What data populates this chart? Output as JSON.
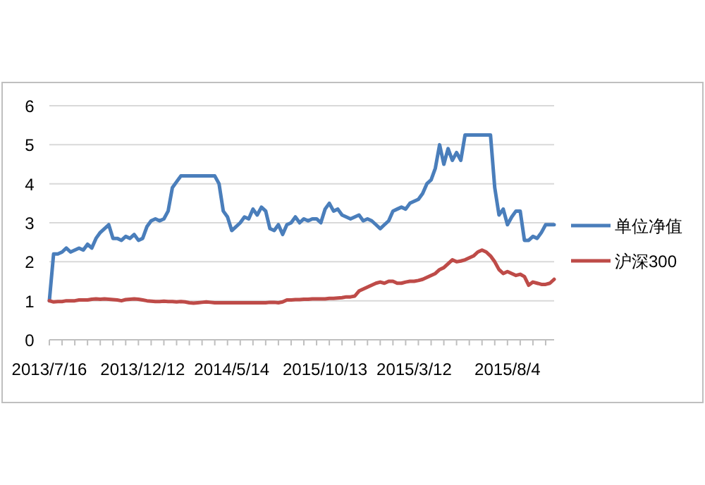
{
  "chart_data": {
    "type": "line",
    "categories": [
      "2013/7/16",
      null,
      null,
      null,
      null,
      null,
      null,
      null,
      null,
      null,
      null,
      null,
      null,
      null,
      null,
      null,
      null,
      null,
      null,
      null,
      null,
      null,
      "2013/12/12",
      null,
      null,
      null,
      null,
      null,
      null,
      null,
      null,
      null,
      null,
      null,
      null,
      null,
      null,
      null,
      null,
      null,
      null,
      null,
      null,
      "2014/5/14",
      null,
      null,
      null,
      null,
      null,
      null,
      null,
      null,
      null,
      null,
      null,
      null,
      null,
      null,
      null,
      null,
      null,
      null,
      null,
      null,
      null,
      "2015/10/13",
      null,
      null,
      null,
      null,
      null,
      null,
      null,
      null,
      null,
      null,
      null,
      null,
      null,
      null,
      null,
      null,
      null,
      null,
      null,
      null,
      "2015/3/12",
      null,
      null,
      null,
      null,
      null,
      null,
      null,
      null,
      null,
      null,
      null,
      null,
      null,
      null,
      null,
      null,
      null,
      null,
      null,
      null,
      null,
      "2015/8/4",
      null,
      null,
      null,
      null,
      null,
      null,
      null,
      null,
      null,
      null,
      null
    ],
    "series": [
      {
        "name": "单位净值",
        "color": "#4a7ebb",
        "values": [
          1.0,
          2.2,
          2.2,
          2.25,
          2.35,
          2.25,
          2.3,
          2.35,
          2.3,
          2.45,
          2.35,
          2.6,
          2.75,
          2.85,
          2.95,
          2.6,
          2.6,
          2.55,
          2.65,
          2.6,
          2.7,
          2.55,
          2.6,
          2.9,
          3.05,
          3.1,
          3.05,
          3.1,
          3.3,
          3.9,
          4.05,
          4.2,
          4.2,
          4.2,
          4.2,
          4.2,
          4.2,
          4.2,
          4.2,
          4.2,
          4.0,
          3.3,
          3.15,
          2.8,
          2.9,
          3.0,
          3.15,
          3.1,
          3.35,
          3.2,
          3.4,
          3.3,
          2.85,
          2.8,
          2.95,
          2.7,
          2.95,
          3.0,
          3.15,
          3.0,
          3.1,
          3.05,
          3.1,
          3.1,
          3.0,
          3.35,
          3.5,
          3.3,
          3.35,
          3.2,
          3.15,
          3.1,
          3.15,
          3.2,
          3.05,
          3.1,
          3.05,
          2.95,
          2.85,
          2.95,
          3.05,
          3.3,
          3.35,
          3.4,
          3.35,
          3.5,
          3.55,
          3.6,
          3.75,
          4.0,
          4.1,
          4.4,
          5.0,
          4.5,
          4.9,
          4.6,
          4.8,
          4.6,
          5.25,
          5.25,
          5.25,
          5.25,
          5.25,
          5.25,
          5.25,
          3.9,
          3.2,
          3.35,
          2.95,
          3.15,
          3.3,
          3.3,
          2.55,
          2.55,
          2.65,
          2.6,
          2.75,
          2.95,
          2.95,
          2.95
        ]
      },
      {
        "name": "沪深300",
        "color": "#be4b48",
        "values": [
          1.0,
          0.97,
          0.98,
          0.98,
          1.0,
          1.0,
          1.0,
          1.02,
          1.02,
          1.02,
          1.04,
          1.05,
          1.04,
          1.05,
          1.04,
          1.03,
          1.02,
          1.0,
          1.03,
          1.04,
          1.05,
          1.04,
          1.02,
          1.0,
          0.99,
          0.98,
          0.98,
          0.99,
          0.98,
          0.98,
          0.97,
          0.98,
          0.97,
          0.95,
          0.94,
          0.95,
          0.96,
          0.97,
          0.96,
          0.95,
          0.95,
          0.95,
          0.95,
          0.95,
          0.95,
          0.95,
          0.95,
          0.95,
          0.95,
          0.95,
          0.95,
          0.95,
          0.96,
          0.96,
          0.95,
          0.97,
          1.02,
          1.02,
          1.03,
          1.03,
          1.04,
          1.04,
          1.05,
          1.05,
          1.05,
          1.05,
          1.06,
          1.06,
          1.07,
          1.08,
          1.1,
          1.1,
          1.12,
          1.25,
          1.3,
          1.35,
          1.4,
          1.45,
          1.48,
          1.45,
          1.5,
          1.5,
          1.45,
          1.45,
          1.48,
          1.5,
          1.5,
          1.52,
          1.55,
          1.6,
          1.65,
          1.7,
          1.8,
          1.85,
          1.95,
          2.05,
          2.0,
          2.02,
          2.05,
          2.1,
          2.15,
          2.25,
          2.3,
          2.25,
          2.15,
          2.0,
          1.8,
          1.7,
          1.75,
          1.7,
          1.65,
          1.68,
          1.62,
          1.4,
          1.48,
          1.45,
          1.42,
          1.42,
          1.45,
          1.55
        ]
      }
    ],
    "ylim": [
      0,
      6
    ],
    "yticks": [
      0,
      1,
      2,
      3,
      4,
      5,
      6
    ],
    "grid": "y",
    "legend": "right",
    "marker": "none",
    "line_style": "solid"
  }
}
